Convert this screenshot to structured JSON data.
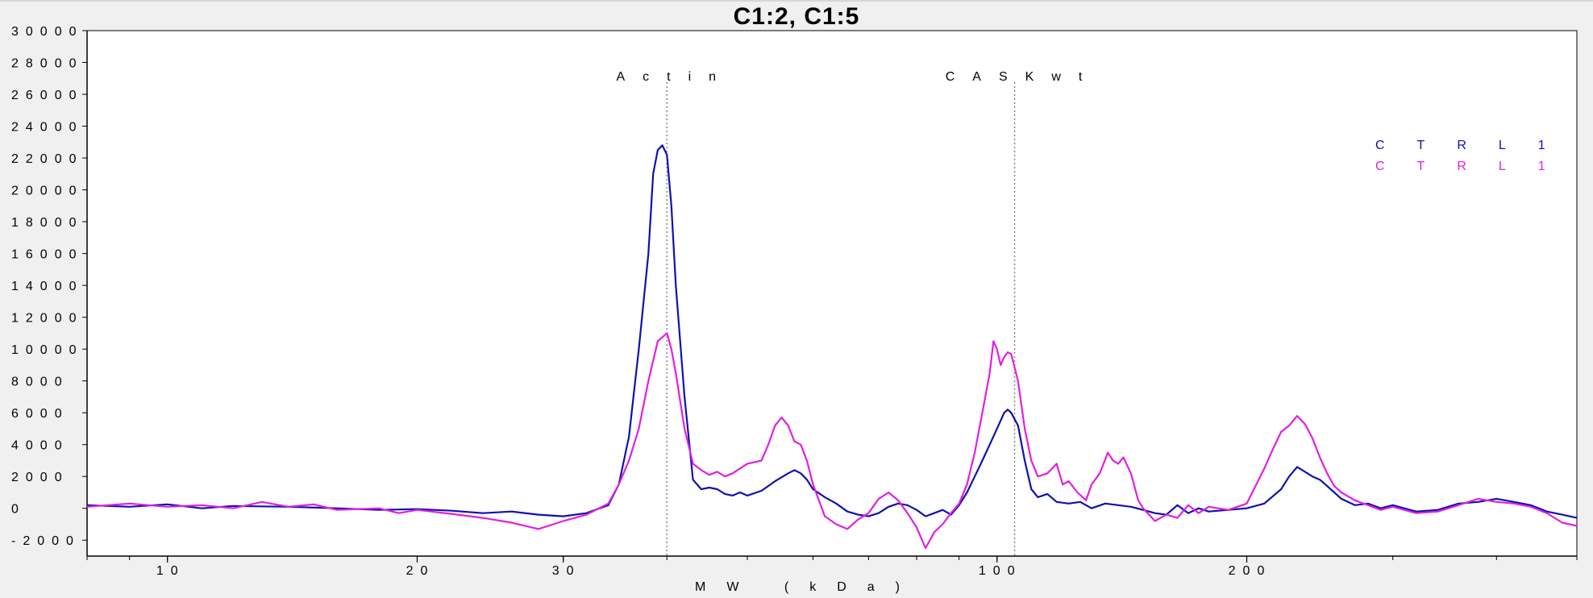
{
  "window": {
    "title": "C1:2, C1:5"
  },
  "chart_data": {
    "type": "line",
    "title": "C1:2, C1:5",
    "xlabel": "MW (kDa)",
    "ylabel": "",
    "x_scale": "log",
    "xlim": [
      8,
      500
    ],
    "ylim": [
      -3000,
      30000
    ],
    "grid": false,
    "legend_position": "top-right",
    "x_tick_labels": [
      {
        "value": 10,
        "label": "10"
      },
      {
        "value": 20,
        "label": "20"
      },
      {
        "value": 30,
        "label": "30"
      },
      {
        "value": 100,
        "label": "100"
      },
      {
        "value": 200,
        "label": "200"
      }
    ],
    "y_tick_labels": [
      {
        "value": 30000,
        "label": "30000"
      },
      {
        "value": 28000,
        "label": "28000"
      },
      {
        "value": 26000,
        "label": "26000"
      },
      {
        "value": 24000,
        "label": "24000"
      },
      {
        "value": 22000,
        "label": "22000"
      },
      {
        "value": 20000,
        "label": "20000"
      },
      {
        "value": 18000,
        "label": "18000"
      },
      {
        "value": 16000,
        "label": "16000"
      },
      {
        "value": 14000,
        "label": "14000"
      },
      {
        "value": 12000,
        "label": "12000"
      },
      {
        "value": 10000,
        "label": "10000"
      },
      {
        "value": 8000,
        "label": "8000"
      },
      {
        "value": 6000,
        "label": "6000"
      },
      {
        "value": 4000,
        "label": "4000"
      },
      {
        "value": 2000,
        "label": "2000"
      },
      {
        "value": 0,
        "label": "0"
      },
      {
        "value": -2000,
        "label": "-2000"
      }
    ],
    "annotations": [
      {
        "label": "Actin",
        "x": 40
      },
      {
        "label": "CASKwt",
        "x": 105
      }
    ],
    "series": [
      {
        "name": "CTRL1",
        "color": "#1010b0",
        "points": [
          [
            8,
            200
          ],
          [
            9,
            100
          ],
          [
            10,
            250
          ],
          [
            11,
            0
          ],
          [
            12,
            150
          ],
          [
            14,
            100
          ],
          [
            16,
            0
          ],
          [
            18,
            -100
          ],
          [
            20,
            -50
          ],
          [
            22,
            -150
          ],
          [
            24,
            -300
          ],
          [
            26,
            -200
          ],
          [
            28,
            -400
          ],
          [
            30,
            -500
          ],
          [
            32,
            -300
          ],
          [
            34,
            200
          ],
          [
            35,
            1500
          ],
          [
            36,
            4500
          ],
          [
            37,
            10000
          ],
          [
            38,
            16000
          ],
          [
            38.5,
            21000
          ],
          [
            39,
            22500
          ],
          [
            39.5,
            22800
          ],
          [
            40,
            22200
          ],
          [
            40.5,
            19000
          ],
          [
            41,
            14000
          ],
          [
            42,
            7000
          ],
          [
            43,
            1800
          ],
          [
            44,
            1200
          ],
          [
            45,
            1300
          ],
          [
            46,
            1200
          ],
          [
            47,
            900
          ],
          [
            48,
            800
          ],
          [
            49,
            1000
          ],
          [
            50,
            800
          ],
          [
            52,
            1100
          ],
          [
            54,
            1700
          ],
          [
            56,
            2200
          ],
          [
            57,
            2400
          ],
          [
            58,
            2200
          ],
          [
            59,
            1800
          ],
          [
            60,
            1200
          ],
          [
            62,
            700
          ],
          [
            64,
            300
          ],
          [
            66,
            -200
          ],
          [
            68,
            -400
          ],
          [
            70,
            -500
          ],
          [
            72,
            -300
          ],
          [
            74,
            100
          ],
          [
            76,
            300
          ],
          [
            78,
            200
          ],
          [
            80,
            -100
          ],
          [
            82,
            -500
          ],
          [
            84,
            -300
          ],
          [
            86,
            -100
          ],
          [
            88,
            -400
          ],
          [
            90,
            200
          ],
          [
            92,
            1000
          ],
          [
            94,
            2000
          ],
          [
            96,
            3000
          ],
          [
            98,
            4000
          ],
          [
            100,
            5000
          ],
          [
            102,
            6000
          ],
          [
            103,
            6200
          ],
          [
            104,
            6000
          ],
          [
            106,
            5200
          ],
          [
            108,
            3000
          ],
          [
            110,
            1200
          ],
          [
            112,
            700
          ],
          [
            115,
            900
          ],
          [
            118,
            400
          ],
          [
            122,
            300
          ],
          [
            126,
            400
          ],
          [
            130,
            0
          ],
          [
            135,
            300
          ],
          [
            140,
            200
          ],
          [
            145,
            100
          ],
          [
            150,
            -100
          ],
          [
            155,
            -300
          ],
          [
            160,
            -400
          ],
          [
            165,
            200
          ],
          [
            170,
            -300
          ],
          [
            175,
            0
          ],
          [
            180,
            -200
          ],
          [
            190,
            -100
          ],
          [
            200,
            0
          ],
          [
            210,
            300
          ],
          [
            220,
            1200
          ],
          [
            225,
            2000
          ],
          [
            230,
            2600
          ],
          [
            235,
            2300
          ],
          [
            240,
            2000
          ],
          [
            245,
            1800
          ],
          [
            250,
            1400
          ],
          [
            255,
            1000
          ],
          [
            260,
            600
          ],
          [
            270,
            200
          ],
          [
            280,
            300
          ],
          [
            290,
            0
          ],
          [
            300,
            200
          ],
          [
            320,
            -200
          ],
          [
            340,
            -100
          ],
          [
            360,
            300
          ],
          [
            380,
            400
          ],
          [
            400,
            600
          ],
          [
            420,
            400
          ],
          [
            440,
            200
          ],
          [
            460,
            -200
          ],
          [
            480,
            -400
          ],
          [
            500,
            -600
          ]
        ]
      },
      {
        "name": "CTRL1",
        "color": "#e020e0",
        "points": [
          [
            8,
            100
          ],
          [
            9,
            300
          ],
          [
            10,
            100
          ],
          [
            11,
            200
          ],
          [
            12,
            0
          ],
          [
            13,
            400
          ],
          [
            14,
            100
          ],
          [
            15,
            250
          ],
          [
            16,
            -100
          ],
          [
            18,
            0
          ],
          [
            19,
            -300
          ],
          [
            20,
            -100
          ],
          [
            22,
            -350
          ],
          [
            24,
            -600
          ],
          [
            26,
            -900
          ],
          [
            28,
            -1300
          ],
          [
            30,
            -800
          ],
          [
            32,
            -400
          ],
          [
            34,
            300
          ],
          [
            35,
            1500
          ],
          [
            36,
            3000
          ],
          [
            37,
            5000
          ],
          [
            38,
            8000
          ],
          [
            39,
            10500
          ],
          [
            40,
            11000
          ],
          [
            40.5,
            10000
          ],
          [
            41,
            8500
          ],
          [
            42,
            5000
          ],
          [
            43,
            2800
          ],
          [
            44,
            2400
          ],
          [
            45,
            2100
          ],
          [
            46,
            2300
          ],
          [
            47,
            2000
          ],
          [
            48,
            2200
          ],
          [
            49,
            2500
          ],
          [
            50,
            2800
          ],
          [
            52,
            3000
          ],
          [
            53,
            4000
          ],
          [
            54,
            5200
          ],
          [
            55,
            5700
          ],
          [
            56,
            5200
          ],
          [
            57,
            4200
          ],
          [
            58,
            4000
          ],
          [
            59,
            3000
          ],
          [
            60,
            1500
          ],
          [
            62,
            -500
          ],
          [
            64,
            -1000
          ],
          [
            66,
            -1300
          ],
          [
            68,
            -700
          ],
          [
            70,
            -300
          ],
          [
            72,
            600
          ],
          [
            74,
            1000
          ],
          [
            76,
            500
          ],
          [
            78,
            -300
          ],
          [
            80,
            -1200
          ],
          [
            82,
            -2500
          ],
          [
            84,
            -1500
          ],
          [
            86,
            -1000
          ],
          [
            88,
            -300
          ],
          [
            90,
            300
          ],
          [
            92,
            1500
          ],
          [
            94,
            3500
          ],
          [
            96,
            6000
          ],
          [
            98,
            8500
          ],
          [
            99,
            10500
          ],
          [
            100,
            10000
          ],
          [
            101,
            9000
          ],
          [
            102,
            9500
          ],
          [
            103,
            9800
          ],
          [
            104,
            9700
          ],
          [
            106,
            8000
          ],
          [
            108,
            5000
          ],
          [
            110,
            3000
          ],
          [
            112,
            2000
          ],
          [
            115,
            2200
          ],
          [
            118,
            2800
          ],
          [
            120,
            1500
          ],
          [
            122,
            1700
          ],
          [
            125,
            1000
          ],
          [
            128,
            500
          ],
          [
            130,
            1500
          ],
          [
            133,
            2200
          ],
          [
            136,
            3500
          ],
          [
            138,
            3000
          ],
          [
            140,
            2800
          ],
          [
            142,
            3200
          ],
          [
            145,
            2200
          ],
          [
            148,
            500
          ],
          [
            150,
            0
          ],
          [
            155,
            -800
          ],
          [
            160,
            -400
          ],
          [
            165,
            -600
          ],
          [
            170,
            200
          ],
          [
            175,
            -300
          ],
          [
            180,
            100
          ],
          [
            190,
            -100
          ],
          [
            200,
            300
          ],
          [
            210,
            2500
          ],
          [
            215,
            3700
          ],
          [
            220,
            4800
          ],
          [
            225,
            5200
          ],
          [
            230,
            5800
          ],
          [
            235,
            5300
          ],
          [
            240,
            4400
          ],
          [
            245,
            3200
          ],
          [
            250,
            2200
          ],
          [
            255,
            1400
          ],
          [
            260,
            1000
          ],
          [
            270,
            500
          ],
          [
            280,
            200
          ],
          [
            290,
            -100
          ],
          [
            300,
            100
          ],
          [
            320,
            -300
          ],
          [
            340,
            -200
          ],
          [
            360,
            200
          ],
          [
            380,
            600
          ],
          [
            400,
            400
          ],
          [
            420,
            300
          ],
          [
            440,
            100
          ],
          [
            460,
            -300
          ],
          [
            480,
            -900
          ],
          [
            500,
            -1100
          ]
        ]
      }
    ]
  }
}
